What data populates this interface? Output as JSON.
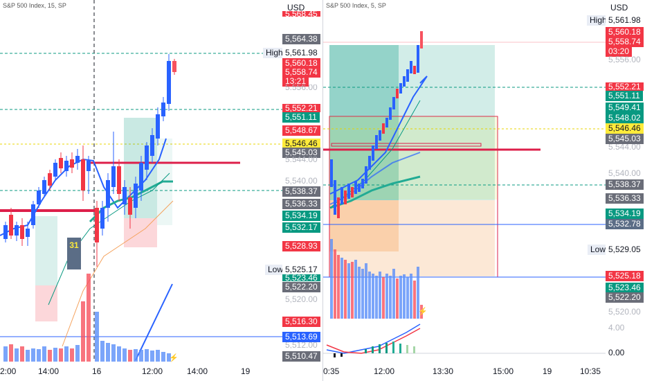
{
  "left_chart": {
    "title": "S&P 500 Index, 15, SP",
    "currency": "USD",
    "high_tag": "High",
    "low_tag": "Low",
    "badge": "31",
    "x_ticks": [
      "2:00",
      "14:00",
      "16",
      "12:00",
      "14:00",
      "19"
    ],
    "price_labels": [
      {
        "text": "5,568.45",
        "style": "red"
      },
      {
        "text": "5,564.38",
        "style": "grey"
      },
      {
        "text": "5,561.98",
        "style": "tick"
      },
      {
        "text": "5,560.18",
        "style": "red"
      },
      {
        "text": "5,558.74",
        "style": "red"
      },
      {
        "text": "13:21",
        "style": "red"
      },
      {
        "text": "5,556.00",
        "style": "tick"
      },
      {
        "text": "5,552.21",
        "style": "red"
      },
      {
        "text": "5,551.11",
        "style": "green"
      },
      {
        "text": "5,548.67",
        "style": "red"
      },
      {
        "text": "5,546.46",
        "style": "yellow"
      },
      {
        "text": "5,545.03",
        "style": "grey"
      },
      {
        "text": "5,544.00",
        "style": "tick"
      },
      {
        "text": "5,540.00",
        "style": "tick"
      },
      {
        "text": "5,538.37",
        "style": "grey"
      },
      {
        "text": "5,536.33",
        "style": "grey"
      },
      {
        "text": "5,534.19",
        "style": "green"
      },
      {
        "text": "5,532.17",
        "style": "green"
      },
      {
        "text": "5,528.93",
        "style": "red"
      },
      {
        "text": "5,525.17",
        "style": "tick"
      },
      {
        "text": "5,523.46",
        "style": "green"
      },
      {
        "text": "5,522.20",
        "style": "grey"
      },
      {
        "text": "5,520.00",
        "style": "tick"
      },
      {
        "text": "5,516.30",
        "style": "red"
      },
      {
        "text": "5,513.69",
        "style": "blue"
      },
      {
        "text": "5,512.00",
        "style": "tick"
      },
      {
        "text": "5,510.47",
        "style": "grey"
      }
    ]
  },
  "right_chart": {
    "title": "S&P 500 Index, 5, SP",
    "currency": "USD",
    "high_tag": "High",
    "low_tag": "Low",
    "x_ticks": [
      "0:35",
      "12:00",
      "13:30",
      "15:00",
      "19",
      "10:35"
    ],
    "price_labels": [
      {
        "text": "5,561.98",
        "style": "tick"
      },
      {
        "text": "5,560.18",
        "style": "red"
      },
      {
        "text": "5,558.74",
        "style": "red"
      },
      {
        "text": "03:20",
        "style": "red"
      },
      {
        "text": "5,556.00",
        "style": "tick"
      },
      {
        "text": "5,552.21",
        "style": "red"
      },
      {
        "text": "5,551.11",
        "style": "green"
      },
      {
        "text": "5,549.41",
        "style": "green"
      },
      {
        "text": "5,548.02",
        "style": "green"
      },
      {
        "text": "5,546.46",
        "style": "yellow"
      },
      {
        "text": "5,545.03",
        "style": "grey"
      },
      {
        "text": "5,544.00",
        "style": "tick"
      },
      {
        "text": "5,540.00",
        "style": "tick"
      },
      {
        "text": "5,538.37",
        "style": "grey"
      },
      {
        "text": "5,536.33",
        "style": "grey"
      },
      {
        "text": "5,534.19",
        "style": "green"
      },
      {
        "text": "5,532.78",
        "style": "steel"
      },
      {
        "text": "5,529.05",
        "style": "tick"
      },
      {
        "text": "5,525.18",
        "style": "red"
      },
      {
        "text": "5,523.46",
        "style": "green"
      },
      {
        "text": "5,522.20",
        "style": "grey"
      },
      {
        "text": "5,520.00",
        "style": "tick"
      }
    ],
    "oscillator_labels": [
      "4.00",
      "0.00"
    ]
  },
  "colors": {
    "up": "#089981",
    "down": "#f23645",
    "blue_candle": "#5b8ff9",
    "red_candle": "#f7525f",
    "ema": "#2962ff",
    "dashed_green": "#089981",
    "dashed_yellow": "#e8d400"
  }
}
